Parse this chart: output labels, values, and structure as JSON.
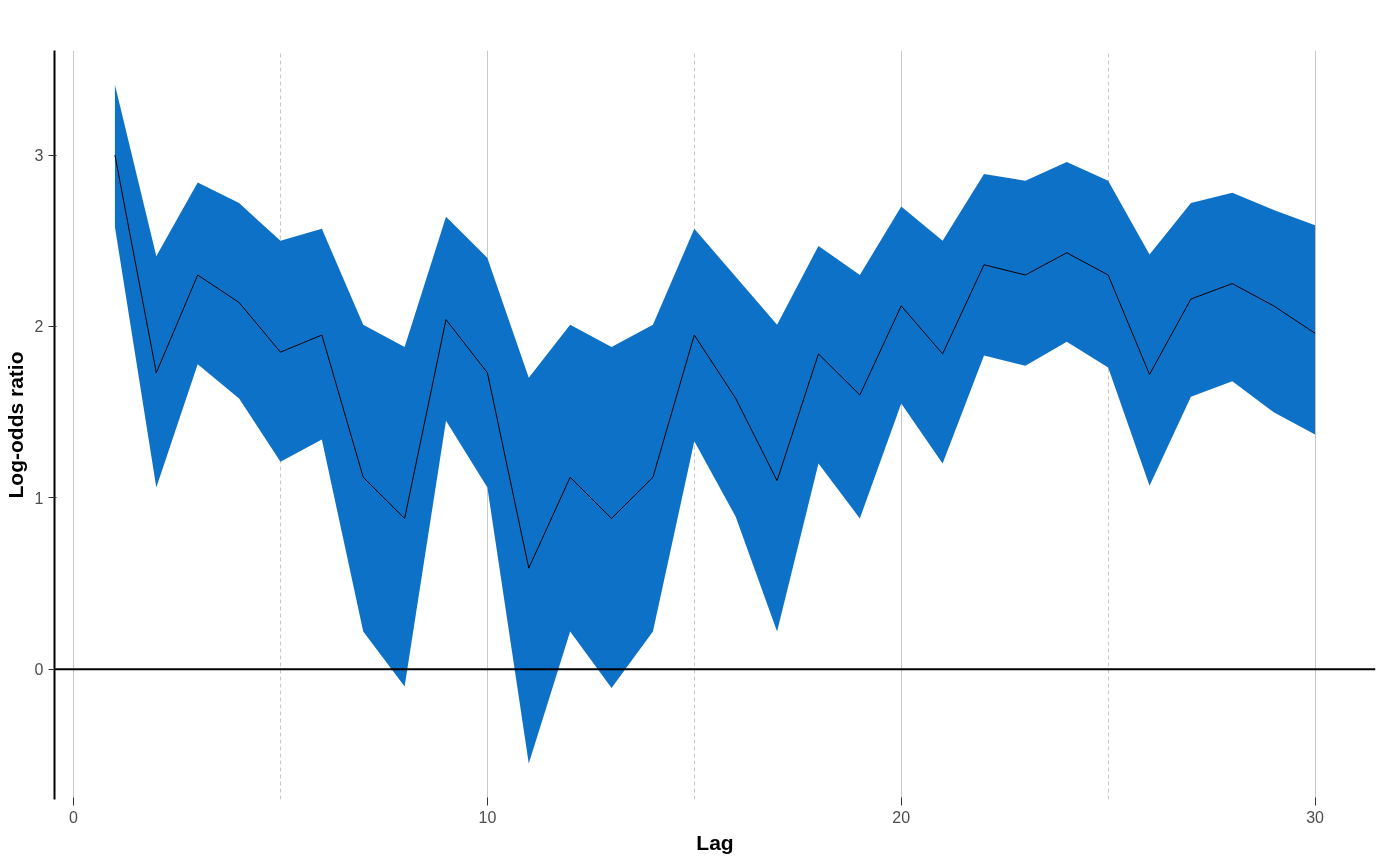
{
  "chart_data": {
    "type": "line",
    "xlabel": "Lag",
    "ylabel": "Log-odds ratio",
    "x": [
      1,
      2,
      3,
      4,
      5,
      6,
      7,
      8,
      9,
      10,
      11,
      12,
      13,
      14,
      15,
      16,
      17,
      18,
      19,
      20,
      21,
      22,
      23,
      24,
      25,
      26,
      27,
      28,
      29,
      30
    ],
    "series": [
      {
        "color": "#000000",
        "values": [
          3.0,
          1.73,
          2.3,
          2.14,
          1.85,
          1.95,
          1.12,
          0.88,
          2.04,
          1.73,
          0.59,
          1.12,
          0.88,
          1.12,
          1.95,
          1.58,
          1.1,
          1.84,
          1.6,
          2.12,
          1.84,
          2.36,
          2.3,
          2.43,
          2.3,
          1.72,
          2.16,
          2.25,
          2.12,
          1.96
        ],
        "upper": [
          3.41,
          2.41,
          2.84,
          2.72,
          2.5,
          2.57,
          2.01,
          1.88,
          2.64,
          2.4,
          1.7,
          2.01,
          1.88,
          2.01,
          2.57,
          2.29,
          2.01,
          2.47,
          2.3,
          2.7,
          2.5,
          2.89,
          2.85,
          2.96,
          2.85,
          2.42,
          2.72,
          2.78,
          2.68,
          2.59
        ],
        "lower": [
          2.58,
          1.06,
          1.78,
          1.58,
          1.21,
          1.34,
          0.22,
          -0.1,
          1.45,
          1.06,
          -0.55,
          0.22,
          -0.11,
          0.22,
          1.33,
          0.89,
          0.22,
          1.2,
          0.88,
          1.55,
          1.2,
          1.83,
          1.77,
          1.91,
          1.76,
          1.07,
          1.59,
          1.68,
          1.5,
          1.37
        ]
      }
    ],
    "xlim": [
      -0.46,
      31.46
    ],
    "ylim": [
      -0.76,
      3.61
    ],
    "xticks": [
      0,
      10,
      20,
      30
    ],
    "yticks": [
      0,
      1,
      2,
      3
    ],
    "grid": "x",
    "marker": "none",
    "line_style": "solid",
    "ref_lines": [
      {
        "axis": "y",
        "value": 0,
        "color": "#000000"
      }
    ]
  }
}
